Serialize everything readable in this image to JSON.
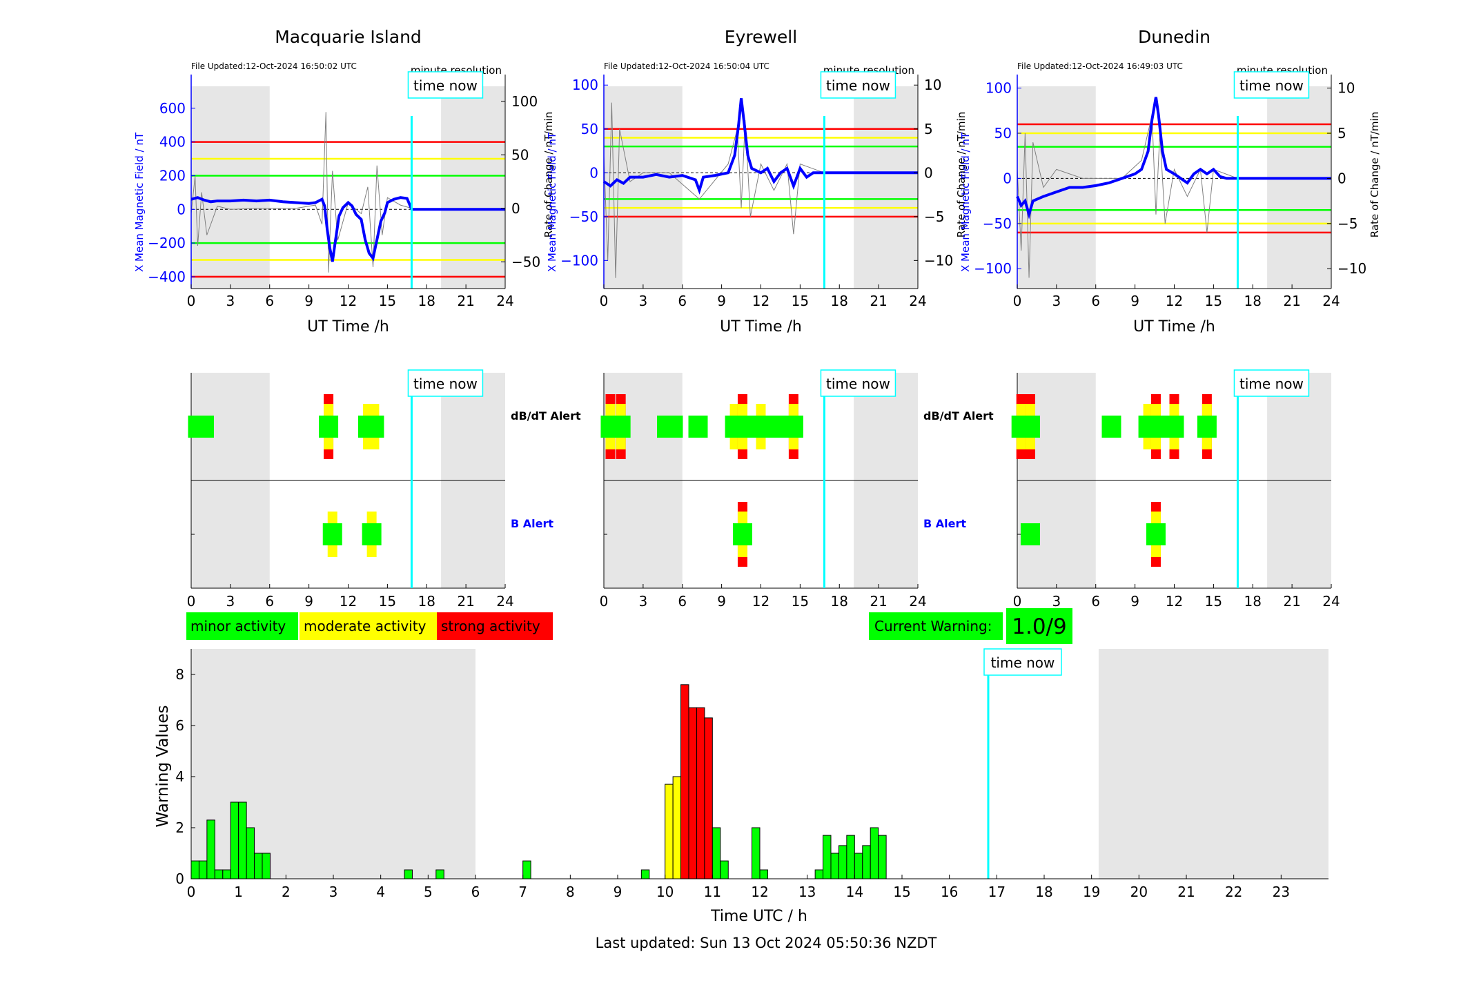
{
  "panels": [
    {
      "station": "Macquarie Island",
      "file_updated": "File Updated:12-Oct-2024 16:50:02 UTC",
      "resolution": "minute resolution",
      "time_now_label": "time now",
      "xlabel": "UT Time /h",
      "ylabel_left": "X Mean Magnetic Field / nT",
      "ylabel_right": "Rate of Change / nT/min",
      "left_range": [
        -470,
        800
      ],
      "left_ticks": [
        -400,
        -200,
        0,
        200,
        400,
        600
      ],
      "right_range": [
        -75,
        125
      ],
      "right_ticks": [
        -50,
        0,
        50,
        100
      ],
      "x_ticks": [
        0,
        3,
        6,
        9,
        12,
        15,
        18,
        21,
        24
      ],
      "threshold_lines": [
        {
          "value": 400,
          "color": "#ff0000"
        },
        {
          "value": 300,
          "color": "#ffff00"
        },
        {
          "value": 200,
          "color": "#00ff00"
        },
        {
          "value": -200,
          "color": "#00ff00"
        },
        {
          "value": -300,
          "color": "#ffff00"
        },
        {
          "value": -400,
          "color": "#ff0000"
        }
      ],
      "night_shading_h": [
        [
          0,
          6
        ],
        [
          19.1,
          24
        ]
      ],
      "now_h": 16.85,
      "field_series": [
        [
          0,
          60
        ],
        [
          0.5,
          70
        ],
        [
          1,
          55
        ],
        [
          1.5,
          45
        ],
        [
          2,
          50
        ],
        [
          3,
          50
        ],
        [
          4,
          55
        ],
        [
          5,
          50
        ],
        [
          6,
          55
        ],
        [
          7,
          45
        ],
        [
          8,
          40
        ],
        [
          9,
          35
        ],
        [
          9.5,
          40
        ],
        [
          10,
          60
        ],
        [
          10.2,
          20
        ],
        [
          10.4,
          -120
        ],
        [
          10.6,
          -230
        ],
        [
          10.8,
          -310
        ],
        [
          11,
          -200
        ],
        [
          11.3,
          -40
        ],
        [
          11.6,
          10
        ],
        [
          12,
          40
        ],
        [
          12.3,
          20
        ],
        [
          12.6,
          -30
        ],
        [
          13,
          -60
        ],
        [
          13.3,
          -180
        ],
        [
          13.6,
          -260
        ],
        [
          13.9,
          -290
        ],
        [
          14.2,
          -180
        ],
        [
          14.5,
          -70
        ],
        [
          14.8,
          -20
        ],
        [
          15,
          40
        ],
        [
          15.5,
          60
        ],
        [
          16,
          70
        ],
        [
          16.5,
          65
        ],
        [
          16.85,
          0
        ],
        [
          24,
          0
        ]
      ],
      "rate_series": [
        [
          0,
          -5
        ],
        [
          0.3,
          30
        ],
        [
          0.5,
          -35
        ],
        [
          0.8,
          15
        ],
        [
          1.2,
          -25
        ],
        [
          2,
          2
        ],
        [
          3,
          -1
        ],
        [
          5,
          0
        ],
        [
          8,
          0
        ],
        [
          9.5,
          3
        ],
        [
          10,
          -15
        ],
        [
          10.3,
          90
        ],
        [
          10.5,
          -60
        ],
        [
          10.8,
          35
        ],
        [
          11.2,
          -30
        ],
        [
          12,
          5
        ],
        [
          13,
          -5
        ],
        [
          13.5,
          20
        ],
        [
          13.9,
          -55
        ],
        [
          14.2,
          40
        ],
        [
          14.6,
          -25
        ],
        [
          15,
          10
        ],
        [
          16,
          3
        ],
        [
          16.85,
          0
        ]
      ],
      "dbdt_alerts": [
        {
          "t": 0.5,
          "level": 1
        },
        {
          "t": 1.0,
          "level": 1
        },
        {
          "t": 10.5,
          "level": 3
        },
        {
          "t": 13.5,
          "level": 2
        },
        {
          "t": 14.0,
          "level": 2
        }
      ],
      "b_alerts": [
        {
          "t": 10.8,
          "level": 2
        },
        {
          "t": 13.8,
          "level": 2
        }
      ]
    },
    {
      "station": "Eyrewell",
      "file_updated": "File Updated:12-Oct-2024 16:50:04 UTC",
      "resolution": "minute resolution",
      "time_now_label": "time now",
      "xlabel": "UT Time /h",
      "ylabel_left": "X Mean Magnetic Field / nT",
      "ylabel_right": "Rate of Change / nT/min",
      "left_range": [
        -132,
        112
      ],
      "left_ticks": [
        -100,
        -50,
        0,
        50,
        100
      ],
      "right_range": [
        -13.2,
        11.2
      ],
      "right_ticks": [
        -10,
        -5,
        0,
        5,
        10
      ],
      "x_ticks": [
        0,
        3,
        6,
        9,
        12,
        15,
        18,
        21,
        24
      ],
      "threshold_lines": [
        {
          "value": 50,
          "color": "#ff0000"
        },
        {
          "value": 40,
          "color": "#ffff00"
        },
        {
          "value": 30,
          "color": "#00ff00"
        },
        {
          "value": -30,
          "color": "#00ff00"
        },
        {
          "value": -40,
          "color": "#ffff00"
        },
        {
          "value": -50,
          "color": "#ff0000"
        }
      ],
      "night_shading_h": [
        [
          0,
          6
        ],
        [
          19.1,
          24
        ]
      ],
      "now_h": 16.85,
      "field_series": [
        [
          0,
          -10
        ],
        [
          0.5,
          -15
        ],
        [
          1,
          -8
        ],
        [
          1.5,
          -12
        ],
        [
          2,
          -5
        ],
        [
          3,
          -5
        ],
        [
          4,
          -2
        ],
        [
          5,
          -5
        ],
        [
          6,
          -3
        ],
        [
          7,
          -8
        ],
        [
          7.3,
          -20
        ],
        [
          7.6,
          -5
        ],
        [
          8.5,
          -3
        ],
        [
          9.5,
          0
        ],
        [
          10,
          20
        ],
        [
          10.3,
          55
        ],
        [
          10.5,
          85
        ],
        [
          10.7,
          60
        ],
        [
          11,
          20
        ],
        [
          11.3,
          5
        ],
        [
          12,
          0
        ],
        [
          12.5,
          5
        ],
        [
          13,
          -10
        ],
        [
          13.5,
          0
        ],
        [
          14,
          5
        ],
        [
          14.5,
          -15
        ],
        [
          15,
          5
        ],
        [
          15.5,
          -5
        ],
        [
          16,
          0
        ],
        [
          16.85,
          0
        ],
        [
          24,
          0
        ]
      ],
      "rate_series": [
        [
          0,
          2
        ],
        [
          0.3,
          -10
        ],
        [
          0.6,
          8
        ],
        [
          0.9,
          -12
        ],
        [
          1.2,
          5
        ],
        [
          2,
          -1
        ],
        [
          3,
          0
        ],
        [
          5,
          0
        ],
        [
          7.3,
          -3
        ],
        [
          9.5,
          1
        ],
        [
          10.2,
          5
        ],
        [
          10.5,
          -4
        ],
        [
          10.8,
          6
        ],
        [
          11.2,
          -5
        ],
        [
          12,
          1
        ],
        [
          13,
          -2
        ],
        [
          14,
          1
        ],
        [
          14.5,
          -7
        ],
        [
          15,
          1
        ],
        [
          16.85,
          0
        ]
      ],
      "dbdt_alerts": [
        {
          "t": 0.5,
          "level": 3
        },
        {
          "t": 1.3,
          "level": 3
        },
        {
          "t": 4.8,
          "level": 1
        },
        {
          "t": 5.3,
          "level": 1
        },
        {
          "t": 7.2,
          "level": 1
        },
        {
          "t": 10.0,
          "level": 2
        },
        {
          "t": 10.6,
          "level": 3
        },
        {
          "t": 12.0,
          "level": 2
        },
        {
          "t": 13.3,
          "level": 1
        },
        {
          "t": 14.5,
          "level": 3
        }
      ],
      "b_alerts": [
        {
          "t": 10.6,
          "level": 3
        }
      ]
    },
    {
      "station": "Dunedin",
      "file_updated": "File Updated:12-Oct-2024 16:49:03 UTC",
      "resolution": "minute resolution",
      "time_now_label": "time now",
      "xlabel": "UT Time /h",
      "ylabel_left": "X Mean Magnetic Field / nT",
      "ylabel_right": "Rate of Change / nT/min",
      "left_range": [
        -122,
        115
      ],
      "left_ticks": [
        -100,
        -50,
        0,
        50,
        100
      ],
      "right_range": [
        -12.2,
        11.5
      ],
      "right_ticks": [
        -10,
        -5,
        0,
        5,
        10
      ],
      "x_ticks": [
        0,
        3,
        6,
        9,
        12,
        15,
        18,
        21,
        24
      ],
      "threshold_lines": [
        {
          "value": 60,
          "color": "#ff0000"
        },
        {
          "value": 50,
          "color": "#ffff00"
        },
        {
          "value": 35,
          "color": "#00ff00"
        },
        {
          "value": -35,
          "color": "#00ff00"
        },
        {
          "value": -50,
          "color": "#ffff00"
        },
        {
          "value": -60,
          "color": "#ff0000"
        }
      ],
      "night_shading_h": [
        [
          0,
          6
        ],
        [
          19.1,
          24
        ]
      ],
      "now_h": 16.85,
      "field_series": [
        [
          0,
          -20
        ],
        [
          0.3,
          -30
        ],
        [
          0.6,
          -25
        ],
        [
          0.9,
          -40
        ],
        [
          1.2,
          -25
        ],
        [
          2,
          -20
        ],
        [
          3,
          -15
        ],
        [
          4,
          -10
        ],
        [
          5,
          -10
        ],
        [
          6,
          -8
        ],
        [
          7,
          -5
        ],
        [
          8,
          0
        ],
        [
          9,
          5
        ],
        [
          9.5,
          10
        ],
        [
          10,
          30
        ],
        [
          10.3,
          65
        ],
        [
          10.6,
          90
        ],
        [
          10.8,
          70
        ],
        [
          11.1,
          30
        ],
        [
          11.4,
          10
        ],
        [
          12,
          5
        ],
        [
          13,
          -5
        ],
        [
          13.5,
          5
        ],
        [
          14,
          10
        ],
        [
          14.5,
          5
        ],
        [
          15,
          10
        ],
        [
          15.5,
          2
        ],
        [
          16,
          0
        ],
        [
          16.85,
          0
        ],
        [
          24,
          0
        ]
      ],
      "rate_series": [
        [
          0,
          1
        ],
        [
          0.3,
          -8
        ],
        [
          0.6,
          5
        ],
        [
          0.9,
          -11
        ],
        [
          1.2,
          4
        ],
        [
          2,
          -1
        ],
        [
          3,
          1
        ],
        [
          5,
          0
        ],
        [
          8,
          0
        ],
        [
          9.5,
          2
        ],
        [
          10.3,
          7
        ],
        [
          10.6,
          -4
        ],
        [
          10.9,
          5
        ],
        [
          11.3,
          -5
        ],
        [
          12,
          1
        ],
        [
          13,
          -2
        ],
        [
          14,
          1
        ],
        [
          14.5,
          -6
        ],
        [
          15,
          1
        ],
        [
          16.85,
          0
        ]
      ],
      "dbdt_alerts": [
        {
          "t": 0.3,
          "level": 3
        },
        {
          "t": 1.0,
          "level": 3
        },
        {
          "t": 7.2,
          "level": 1
        },
        {
          "t": 10.0,
          "level": 2
        },
        {
          "t": 10.6,
          "level": 3
        },
        {
          "t": 12.0,
          "level": 3
        },
        {
          "t": 14.5,
          "level": 3
        }
      ],
      "b_alerts": [
        {
          "t": 1.0,
          "level": 1
        },
        {
          "t": 10.6,
          "level": 3
        }
      ]
    }
  ],
  "alert_labels": {
    "dbdt": "dB/dT Alert",
    "b": "B Alert"
  },
  "legend": {
    "minor": "minor activity",
    "moderate": "moderate activity",
    "strong": "strong activity"
  },
  "current_warning": {
    "label": "Current Warning:",
    "value": "1.0/9"
  },
  "colors": {
    "minor": "#00ff00",
    "moderate": "#ffff00",
    "strong": "#ff0000",
    "now_line": "#00ffff",
    "field": "#0000ff",
    "night": "#e6e6e6"
  },
  "chart_data": {
    "type": "bar",
    "xlabel": "Time UTC / h",
    "ylabel": "Warning Values",
    "xlim": [
      0,
      24
    ],
    "ylim": [
      0,
      9
    ],
    "x_ticks": [
      0,
      1,
      2,
      3,
      4,
      5,
      6,
      7,
      8,
      9,
      10,
      11,
      12,
      13,
      14,
      15,
      16,
      17,
      18,
      19,
      20,
      21,
      22,
      23
    ],
    "y_ticks": [
      0,
      2,
      4,
      6,
      8
    ],
    "bin_width_h": 0.1667,
    "night_shading_h": [
      [
        0,
        6
      ],
      [
        19.15,
        24
      ]
    ],
    "now_h": 16.82,
    "time_now_label": "time now",
    "bars": [
      {
        "t": 0.0,
        "v": 0.7
      },
      {
        "t": 0.167,
        "v": 0.7
      },
      {
        "t": 0.333,
        "v": 2.3
      },
      {
        "t": 0.5,
        "v": 0.35
      },
      {
        "t": 0.667,
        "v": 0.35
      },
      {
        "t": 0.833,
        "v": 3.0
      },
      {
        "t": 1.0,
        "v": 3.0
      },
      {
        "t": 1.167,
        "v": 2.0
      },
      {
        "t": 1.333,
        "v": 1.0
      },
      {
        "t": 1.5,
        "v": 1.0
      },
      {
        "t": 4.5,
        "v": 0.35
      },
      {
        "t": 5.167,
        "v": 0.35
      },
      {
        "t": 7.0,
        "v": 0.7
      },
      {
        "t": 9.5,
        "v": 0.35
      },
      {
        "t": 10.0,
        "v": 3.7
      },
      {
        "t": 10.167,
        "v": 4.0
      },
      {
        "t": 10.333,
        "v": 7.6
      },
      {
        "t": 10.5,
        "v": 6.7
      },
      {
        "t": 10.667,
        "v": 6.7
      },
      {
        "t": 10.833,
        "v": 6.3
      },
      {
        "t": 11.0,
        "v": 2.0
      },
      {
        "t": 11.167,
        "v": 0.7
      },
      {
        "t": 11.833,
        "v": 2.0
      },
      {
        "t": 12.0,
        "v": 0.35
      },
      {
        "t": 13.167,
        "v": 0.35
      },
      {
        "t": 13.333,
        "v": 1.7
      },
      {
        "t": 13.5,
        "v": 1.0
      },
      {
        "t": 13.667,
        "v": 1.3
      },
      {
        "t": 13.833,
        "v": 1.7
      },
      {
        "t": 14.0,
        "v": 1.0
      },
      {
        "t": 14.167,
        "v": 1.3
      },
      {
        "t": 14.333,
        "v": 2.0
      },
      {
        "t": 14.5,
        "v": 1.7
      }
    ],
    "color_rule": {
      "moderate_from": 3.5,
      "strong_from": 5.0
    }
  },
  "last_updated": "Last updated: Sun 13 Oct 2024 05:50:36 NZDT"
}
